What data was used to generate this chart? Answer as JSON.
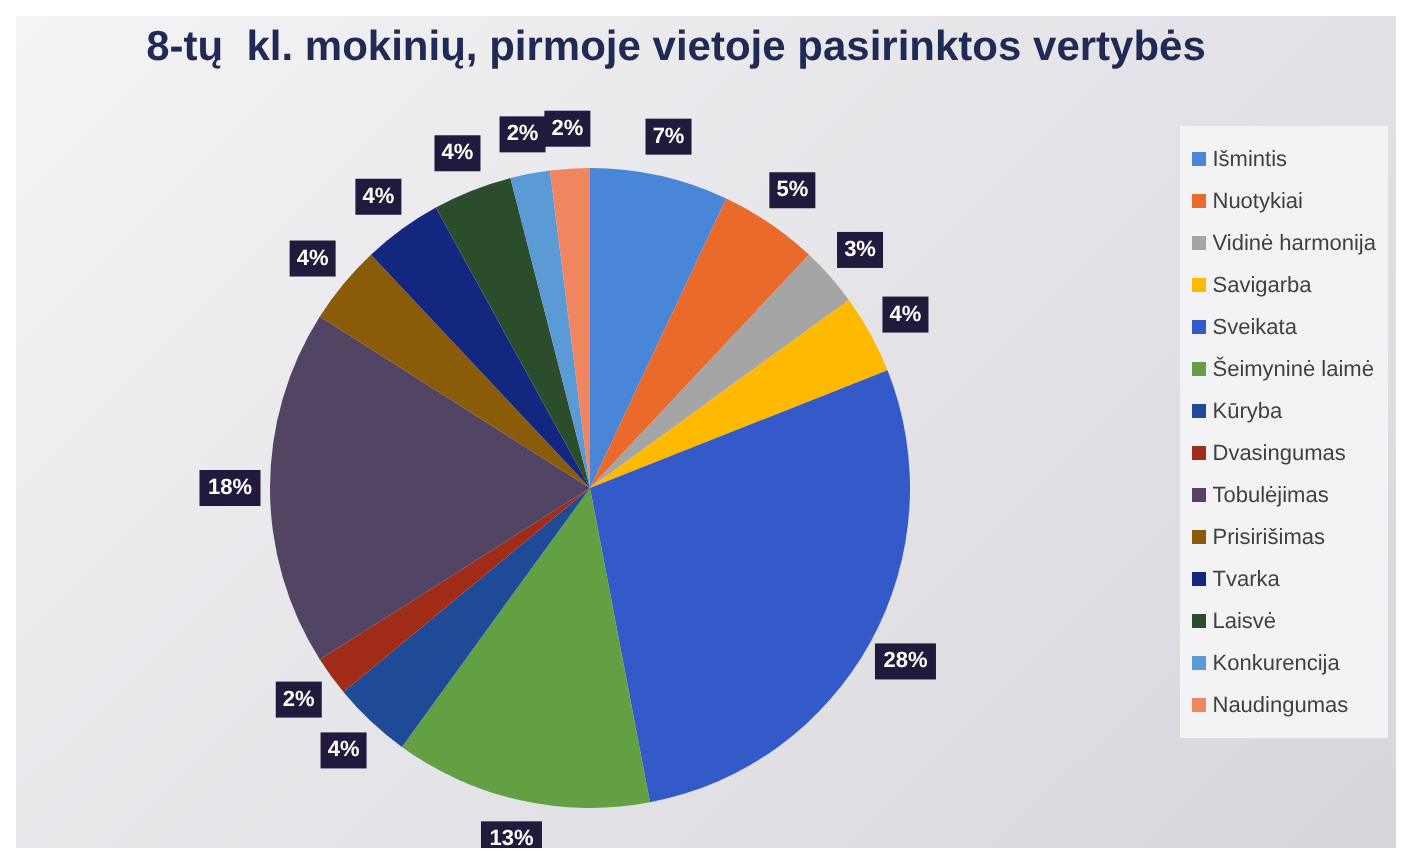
{
  "chart_data": {
    "type": "pie",
    "title": "8-tų  kl. mokinių, pirmoje vietoje pasirinktos vertybės",
    "categories": [
      "Išmintis",
      "Nuotykiai",
      "Vidinė harmonija",
      "Savigarba",
      "Sveikata",
      "Šeimyninė laimė",
      "Kūryba",
      "Dvasingumas",
      "Tobulėjimas",
      "Prisirišimas",
      "Tvarka",
      "Laisvė",
      "Konkurencija",
      "Naudingumas"
    ],
    "values": [
      7,
      5,
      3,
      4,
      28,
      13,
      4,
      2,
      18,
      4,
      4,
      4,
      2,
      2
    ],
    "value_labels": [
      "7%",
      "5%",
      "3%",
      "4%",
      "28%",
      "13%",
      "4%",
      "2%",
      "18%",
      "4%",
      "4%",
      "4%",
      "2%",
      "2%"
    ],
    "colors": [
      "#4a86d8",
      "#ea6a2c",
      "#a5a5a5",
      "#ffba00",
      "#3459c8",
      "#62a043",
      "#1e4a98",
      "#a12c18",
      "#524463",
      "#8a5b08",
      "#142780",
      "#2b4d2c",
      "#5b9bd5",
      "#f08660"
    ],
    "legend": "right"
  }
}
